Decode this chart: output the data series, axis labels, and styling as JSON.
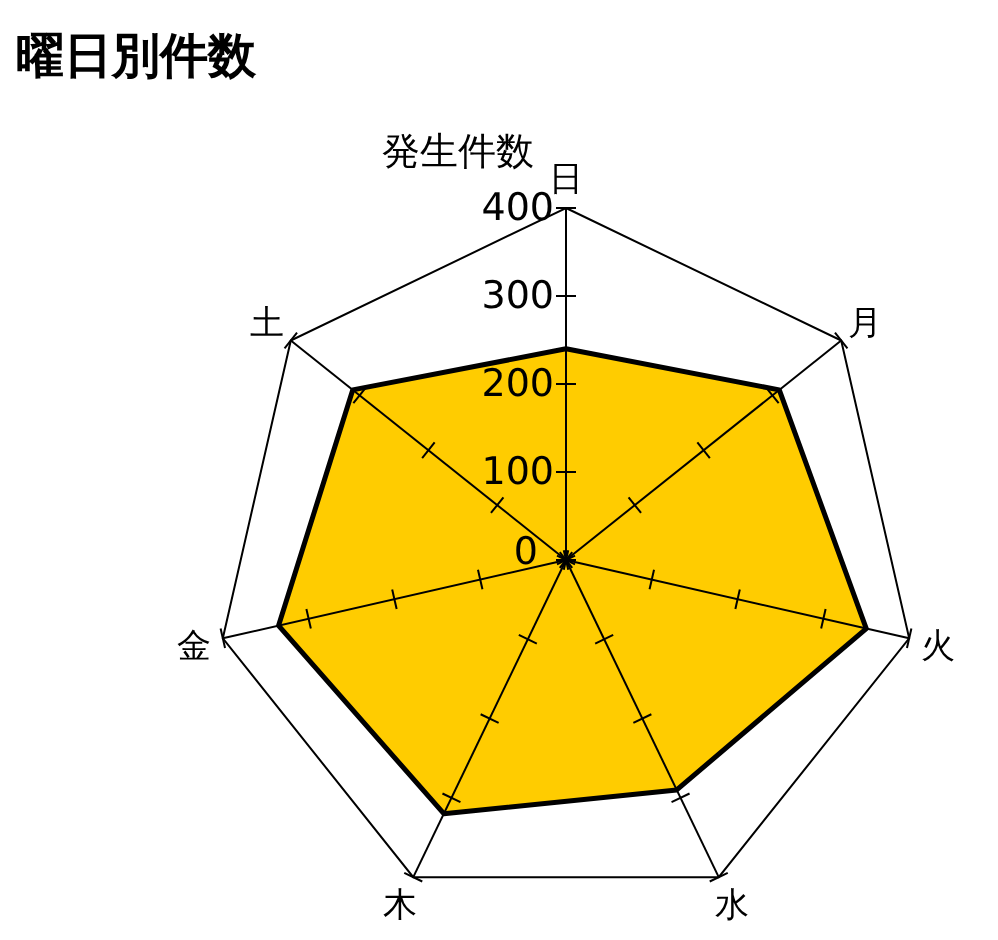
{
  "chart_data": {
    "type": "radar",
    "title": "曜日別件数",
    "ylabel": "発生件数",
    "categories": [
      "日",
      "月",
      "火",
      "水",
      "木",
      "金",
      "土"
    ],
    "series": [
      {
        "color": "#ffcc00",
        "values": [
          240,
          310,
          350,
          290,
          320,
          335,
          310
        ]
      }
    ],
    "ylim": [
      0,
      400
    ],
    "yticks": [
      0,
      100,
      200,
      300,
      400
    ],
    "grid": false,
    "marker": "none"
  }
}
